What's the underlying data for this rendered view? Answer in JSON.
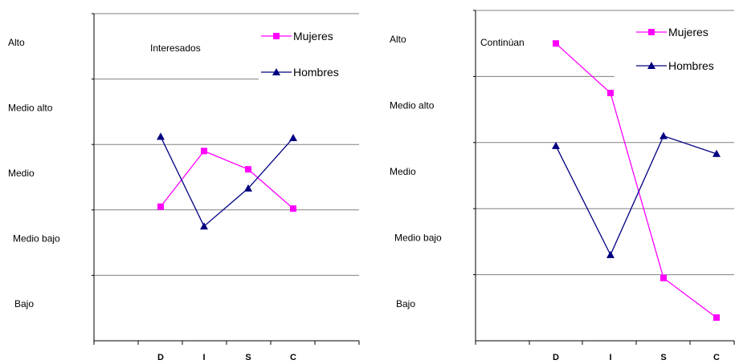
{
  "chart_data": [
    {
      "type": "line",
      "title": "Interesados",
      "levels": [
        "Alto",
        "Medio alto",
        "Medio",
        "Medio bajo",
        "Bajo"
      ],
      "categories": [
        "D",
        "I",
        "S",
        "C"
      ],
      "ylim": [
        0,
        5
      ],
      "grid": true,
      "legend_position": "top-right",
      "series": [
        {
          "name": "Mujeres",
          "color": "#ff00ff",
          "marker": "square",
          "values": [
            2.05,
            2.9,
            2.62,
            2.02
          ]
        },
        {
          "name": "Hombres",
          "color": "#000080",
          "marker": "triangle",
          "values": [
            3.12,
            1.75,
            2.33,
            3.1
          ]
        }
      ]
    },
    {
      "type": "line",
      "title": "Continúan",
      "levels": [
        "Alto",
        "Medio alto",
        "Medio",
        "Medio bajo",
        "Bajo"
      ],
      "categories": [
        "D",
        "I",
        "S",
        "C"
      ],
      "ylim": [
        0,
        5
      ],
      "grid": true,
      "legend_position": "top-right",
      "series": [
        {
          "name": "Mujeres",
          "color": "#ff00ff",
          "marker": "square",
          "values": [
            4.5,
            3.75,
            0.95,
            0.35
          ]
        },
        {
          "name": "Hombres",
          "color": "#000080",
          "marker": "triangle",
          "values": [
            2.95,
            1.3,
            3.1,
            2.83
          ]
        }
      ]
    }
  ]
}
